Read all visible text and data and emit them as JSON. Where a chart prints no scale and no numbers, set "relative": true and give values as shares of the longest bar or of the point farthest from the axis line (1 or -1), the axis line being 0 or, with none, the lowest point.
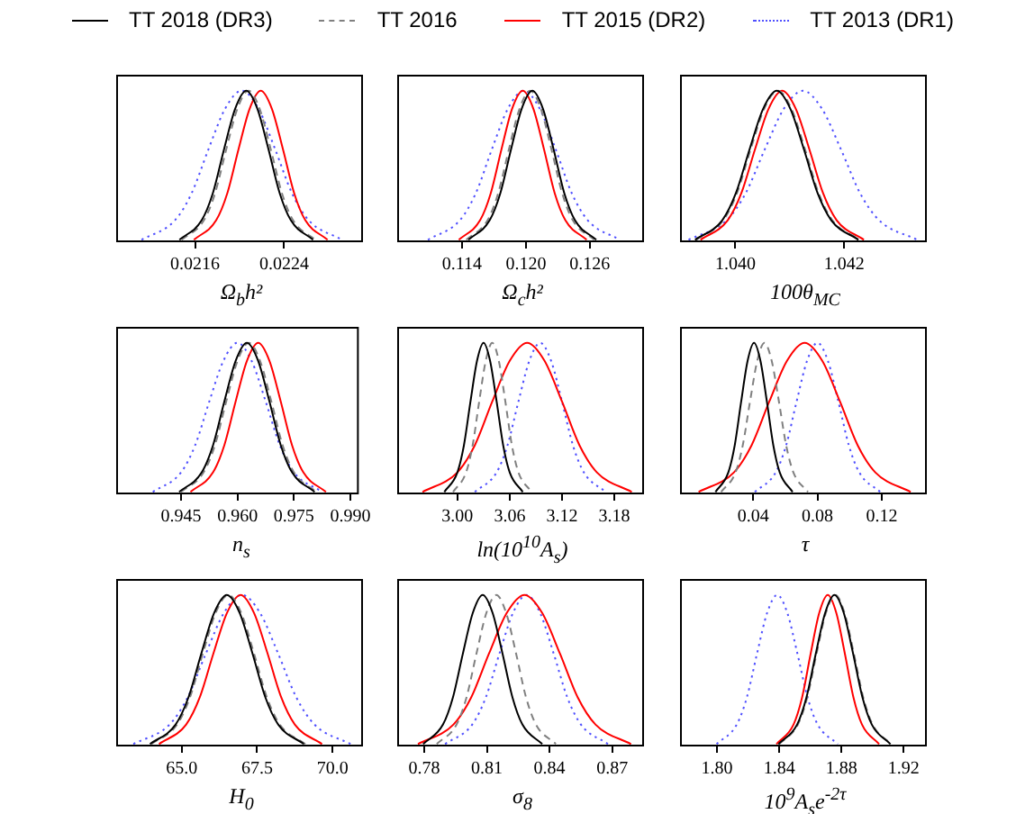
{
  "chart_data": [
    {
      "type": "line",
      "relative": true,
      "legend": "top",
      "xlabel": "Ω$_{b}$h²",
      "xlim": [
        0.0209,
        0.0231
      ],
      "xticks": [
        0.0216,
        0.0224
      ],
      "series": [
        {
          "name": "TT 2018 (DR3)",
          "color": "#000000",
          "line_style": "solid",
          "x": [
            0.02146,
            0.02166,
            0.02176,
            0.02186,
            0.02196,
            0.02206,
            0.02216,
            0.02226,
            0.02236,
            0.02246,
            0.02266
          ],
          "values": [
            0.01,
            0.14,
            0.32,
            0.61,
            0.88,
            1,
            0.88,
            0.61,
            0.32,
            0.14,
            0.01
          ]
        },
        {
          "name": "TT 2016",
          "color": "#808080",
          "line_style": "dashed",
          "x": [
            0.02148,
            0.02168,
            0.02178,
            0.02188,
            0.02198,
            0.02208,
            0.02218,
            0.02228,
            0.02238,
            0.02248,
            0.02268
          ],
          "values": [
            0.01,
            0.14,
            0.32,
            0.61,
            0.88,
            1,
            0.88,
            0.61,
            0.32,
            0.14,
            0.01
          ]
        },
        {
          "name": "TT 2015 (DR2)",
          "color": "#ff0000",
          "line_style": "solid",
          "x": [
            0.02159,
            0.02179,
            0.02189,
            0.02199,
            0.02209,
            0.02219,
            0.02229,
            0.02239,
            0.02249,
            0.02259,
            0.02279
          ],
          "values": [
            0.01,
            0.14,
            0.32,
            0.61,
            0.88,
            1,
            0.88,
            0.61,
            0.32,
            0.14,
            0.01
          ]
        },
        {
          "name": "TT 2013 (DR1)",
          "color": "#5050ff",
          "line_style": "dotted",
          "x": [
            0.02112,
            0.02142,
            0.02157,
            0.02172,
            0.02187,
            0.02202,
            0.02217,
            0.02232,
            0.02247,
            0.02262,
            0.02292
          ],
          "values": [
            0.01,
            0.14,
            0.32,
            0.61,
            0.88,
            1,
            0.88,
            0.61,
            0.32,
            0.14,
            0.01
          ]
        }
      ]
    },
    {
      "type": "line",
      "relative": true,
      "xlabel": "Ω$_{c}$h²",
      "xlim": [
        0.108,
        0.131
      ],
      "xticks": [
        0.114,
        {
          "value": 0.12,
          "label": "0.120"
        },
        0.126
      ],
      "series": [
        {
          "color": "#000000",
          "line_style": "solid",
          "x": [
            0.1146,
            0.1166,
            0.1176,
            0.1186,
            0.1196,
            0.1206,
            0.1216,
            0.1226,
            0.1236,
            0.1246,
            0.1266
          ],
          "values": [
            0.01,
            0.14,
            0.32,
            0.61,
            0.88,
            1,
            0.88,
            0.61,
            0.32,
            0.14,
            0.01
          ]
        },
        {
          "color": "#808080",
          "line_style": "dashed",
          "x": [
            0.1144,
            0.1164,
            0.1174,
            0.1184,
            0.1194,
            0.1204,
            0.1214,
            0.1224,
            0.1234,
            0.1244,
            0.1264
          ],
          "values": [
            0.01,
            0.14,
            0.32,
            0.61,
            0.88,
            1,
            0.88,
            0.61,
            0.32,
            0.14,
            0.01
          ]
        },
        {
          "color": "#ff0000",
          "line_style": "solid",
          "x": [
            0.1137,
            0.1157,
            0.1167,
            0.1177,
            0.1187,
            0.1197,
            0.1207,
            0.1217,
            0.1227,
            0.1237,
            0.1257
          ],
          "values": [
            0.01,
            0.14,
            0.32,
            0.61,
            0.88,
            1,
            0.88,
            0.61,
            0.32,
            0.14,
            0.01
          ]
        },
        {
          "color": "#5050ff",
          "line_style": "dotted",
          "x": [
            0.1108,
            0.1138,
            0.1153,
            0.1168,
            0.1183,
            0.1198,
            0.1213,
            0.1228,
            0.1243,
            0.1258,
            0.1288
          ],
          "values": [
            0.01,
            0.14,
            0.32,
            0.61,
            0.88,
            1,
            0.88,
            0.61,
            0.32,
            0.14,
            0.01
          ]
        }
      ]
    },
    {
      "type": "line",
      "relative": true,
      "xlabel": "100θ$_{MC}$",
      "xlim": [
        1.039,
        1.0435
      ],
      "xticks": [
        {
          "value": 1.04,
          "label": "1.040"
        },
        1.042
      ],
      "series": [
        {
          "color": "#000000",
          "line_style": "solid",
          "x": [
            1.03926,
            1.03976,
            1.04001,
            1.04026,
            1.04051,
            1.04076,
            1.04101,
            1.04126,
            1.04151,
            1.04176,
            1.04226
          ],
          "values": [
            0.01,
            0.14,
            0.32,
            0.61,
            0.88,
            1,
            0.88,
            0.61,
            0.32,
            0.14,
            0.01
          ]
        },
        {
          "color": "#808080",
          "line_style": "dashed",
          "x": [
            1.03928,
            1.03978,
            1.04003,
            1.04028,
            1.04053,
            1.04078,
            1.04103,
            1.04128,
            1.04153,
            1.04178,
            1.04228
          ],
          "values": [
            0.01,
            0.14,
            0.32,
            0.61,
            0.88,
            1,
            0.88,
            0.61,
            0.32,
            0.14,
            0.01
          ]
        },
        {
          "color": "#ff0000",
          "line_style": "solid",
          "x": [
            1.03936,
            1.03986,
            1.04011,
            1.04036,
            1.04061,
            1.04086,
            1.04111,
            1.04136,
            1.04161,
            1.04186,
            1.04236
          ],
          "values": [
            0.01,
            0.14,
            0.32,
            0.61,
            0.88,
            1,
            0.88,
            0.61,
            0.32,
            0.14,
            0.01
          ]
        },
        {
          "color": "#5050ff",
          "line_style": "dotted",
          "x": [
            1.03914,
            1.03984,
            1.04019,
            1.04054,
            1.04089,
            1.04124,
            1.04159,
            1.04194,
            1.04229,
            1.04264,
            1.04334
          ],
          "values": [
            0.01,
            0.14,
            0.32,
            0.61,
            0.88,
            1,
            0.88,
            0.61,
            0.32,
            0.14,
            0.01
          ]
        }
      ]
    },
    {
      "type": "line",
      "relative": true,
      "xlabel": "n$_{s}$",
      "xlim": [
        0.928,
        0.992
      ],
      "xticks": [
        0.945,
        {
          "value": 0.96,
          "label": "0.960"
        },
        0.975,
        {
          "value": 0.99,
          "label": "0.990"
        }
      ],
      "series": [
        {
          "color": "#000000",
          "line_style": "solid",
          "x": [
            0.9445,
            0.9505,
            0.9535,
            0.9565,
            0.9595,
            0.9625,
            0.9655,
            0.9685,
            0.9715,
            0.9745,
            0.9805
          ],
          "values": [
            0.01,
            0.14,
            0.32,
            0.61,
            0.88,
            1,
            0.88,
            0.61,
            0.32,
            0.14,
            0.01
          ]
        },
        {
          "color": "#808080",
          "line_style": "dashed",
          "x": [
            0.945,
            0.951,
            0.954,
            0.957,
            0.96,
            0.963,
            0.966,
            0.969,
            0.972,
            0.975,
            0.981
          ],
          "values": [
            0.01,
            0.14,
            0.32,
            0.61,
            0.88,
            1,
            0.88,
            0.61,
            0.32,
            0.14,
            0.01
          ]
        },
        {
          "color": "#ff0000",
          "line_style": "solid",
          "x": [
            0.9475,
            0.9535,
            0.9565,
            0.9595,
            0.9625,
            0.9655,
            0.9685,
            0.9715,
            0.9745,
            0.9775,
            0.9835
          ],
          "values": [
            0.01,
            0.14,
            0.32,
            0.61,
            0.88,
            1,
            0.88,
            0.61,
            0.32,
            0.14,
            0.01
          ]
        },
        {
          "color": "#5050ff",
          "line_style": "dotted",
          "x": [
            0.9375,
            0.945,
            0.94875,
            0.9525,
            0.95625,
            0.96,
            0.96375,
            0.9675,
            0.97125,
            0.975,
            0.9825
          ],
          "values": [
            0.01,
            0.14,
            0.32,
            0.61,
            0.88,
            1,
            0.88,
            0.61,
            0.32,
            0.14,
            0.01
          ]
        }
      ]
    },
    {
      "type": "line",
      "relative": true,
      "xlabel": "ln(10$^{10}$A$_{s}$)",
      "xlim": [
        2.932,
        3.213
      ],
      "xticks": [
        {
          "value": 3,
          "label": "3.00"
        },
        3.06,
        3.12,
        3.18
      ],
      "series": [
        {
          "color": "#000000",
          "line_style": "solid",
          "x": [
            2.985,
            3.0,
            3.0075,
            3.015,
            3.0225,
            3.03,
            3.0375,
            3.045,
            3.0525,
            3.06,
            3.075
          ],
          "values": [
            0.01,
            0.14,
            0.32,
            0.61,
            0.88,
            1,
            0.88,
            0.61,
            0.32,
            0.14,
            0.01
          ]
        },
        {
          "color": "#808080",
          "line_style": "dashed",
          "x": [
            2.995,
            3.01,
            3.0175,
            3.025,
            3.0325,
            3.04,
            3.0475,
            3.055,
            3.0625,
            3.07,
            3.085
          ],
          "values": [
            0.01,
            0.14,
            0.32,
            0.61,
            0.88,
            1,
            0.88,
            0.61,
            0.32,
            0.14,
            0.01
          ]
        },
        {
          "color": "#ff0000",
          "line_style": "solid",
          "x": [
            2.96,
            3.0,
            3.02,
            3.04,
            3.06,
            3.08,
            3.1,
            3.12,
            3.14,
            3.16,
            3.2
          ],
          "values": [
            0.01,
            0.14,
            0.32,
            0.61,
            0.88,
            1,
            0.88,
            0.61,
            0.32,
            0.14,
            0.01
          ]
        },
        {
          "color": "#5050ff",
          "line_style": "dotted",
          "x": [
            3.02,
            3.045,
            3.0575,
            3.07,
            3.0825,
            3.095,
            3.1075,
            3.12,
            3.1325,
            3.145,
            3.17
          ],
          "values": [
            0.01,
            0.14,
            0.32,
            0.61,
            0.88,
            1,
            0.88,
            0.61,
            0.32,
            0.14,
            0.01
          ]
        }
      ]
    },
    {
      "type": "line",
      "relative": true,
      "xlabel": "τ",
      "xlim": [
        -0.005,
        0.1475
      ],
      "xticks": [
        0.04,
        0.08,
        0.12
      ],
      "series": [
        {
          "color": "#000000",
          "line_style": "solid",
          "x": [
            0.0165,
            0.0245,
            0.0285,
            0.0325,
            0.0365,
            0.0405,
            0.0445,
            0.0485,
            0.0525,
            0.0565,
            0.0645
          ],
          "values": [
            0.01,
            0.14,
            0.32,
            0.61,
            0.88,
            1,
            0.88,
            0.61,
            0.32,
            0.14,
            0.01
          ]
        },
        {
          "color": "#808080",
          "line_style": "dashed",
          "x": [
            0.02,
            0.029,
            0.0335,
            0.038,
            0.0425,
            0.047,
            0.0515,
            0.056,
            0.0605,
            0.065,
            0.074
          ],
          "values": [
            0.01,
            0.14,
            0.32,
            0.61,
            0.88,
            1,
            0.88,
            0.61,
            0.32,
            0.14,
            0.01
          ]
        },
        {
          "color": "#ff0000",
          "line_style": "solid",
          "x": [
            0.006,
            0.028,
            0.039,
            0.05,
            0.061,
            0.072,
            0.083,
            0.094,
            0.105,
            0.116,
            0.138
          ],
          "values": [
            0.01,
            0.14,
            0.32,
            0.61,
            0.88,
            1,
            0.88,
            0.61,
            0.32,
            0.14,
            0.01
          ]
        },
        {
          "color": "#5050ff",
          "line_style": "dotted",
          "x": [
            0.041,
            0.054,
            0.0605,
            0.067,
            0.0735,
            0.08,
            0.0865,
            0.093,
            0.0995,
            0.106,
            0.119
          ],
          "values": [
            0.01,
            0.14,
            0.32,
            0.61,
            0.88,
            1,
            0.88,
            0.61,
            0.32,
            0.14,
            0.01
          ]
        }
      ]
    },
    {
      "type": "line",
      "relative": true,
      "xlabel": "H$_{0}$",
      "xlim": [
        62.86,
        70.98
      ],
      "xticks": [
        {
          "value": 65,
          "label": "65.0"
        },
        67.5,
        {
          "value": 70,
          "label": "70.0"
        }
      ],
      "series": [
        {
          "color": "#000000",
          "line_style": "solid",
          "x": [
            63.95,
            64.8,
            65.225,
            65.65,
            66.075,
            66.5,
            66.925,
            67.35,
            67.775,
            68.2,
            69.05
          ],
          "values": [
            0.01,
            0.14,
            0.32,
            0.61,
            0.88,
            1,
            0.88,
            0.61,
            0.32,
            0.14,
            0.01
          ]
        },
        {
          "color": "#808080",
          "line_style": "dashed",
          "x": [
            64.0,
            64.85,
            65.275,
            65.7,
            66.125,
            66.55,
            66.975,
            67.4,
            67.825,
            68.25,
            69.1
          ],
          "values": [
            0.01,
            0.14,
            0.32,
            0.61,
            0.88,
            1,
            0.88,
            0.61,
            0.32,
            0.14,
            0.01
          ]
        },
        {
          "color": "#ff0000",
          "line_style": "solid",
          "x": [
            64.25,
            65.15,
            65.6,
            66.05,
            66.5,
            66.95,
            67.4,
            67.85,
            68.3,
            68.75,
            69.65
          ],
          "values": [
            0.01,
            0.14,
            0.32,
            0.61,
            0.88,
            1,
            0.88,
            0.61,
            0.32,
            0.14,
            0.01
          ]
        },
        {
          "color": "#5050ff",
          "line_style": "dotted",
          "x": [
            63.4,
            64.6,
            65.2,
            65.8,
            66.4,
            67.0,
            67.6,
            68.2,
            68.8,
            69.4,
            70.6
          ],
          "values": [
            0.01,
            0.14,
            0.32,
            0.61,
            0.88,
            1,
            0.88,
            0.61,
            0.32,
            0.14,
            0.01
          ]
        }
      ]
    },
    {
      "type": "line",
      "relative": true,
      "xlabel": "σ$_{8}$",
      "xlim": [
        0.7675,
        0.8848
      ],
      "xticks": [
        0.78,
        0.81,
        0.84,
        0.87
      ],
      "series": [
        {
          "color": "#000000",
          "line_style": "solid",
          "x": [
            0.7795,
            0.789,
            0.79375,
            0.7985,
            0.80325,
            0.808,
            0.81275,
            0.8175,
            0.82225,
            0.827,
            0.8365
          ],
          "values": [
            0.01,
            0.14,
            0.32,
            0.61,
            0.88,
            1,
            0.88,
            0.61,
            0.32,
            0.14,
            0.01
          ]
        },
        {
          "color": "#808080",
          "line_style": "dashed",
          "x": [
            0.786,
            0.7955,
            0.80025,
            0.805,
            0.80975,
            0.8145,
            0.81925,
            0.824,
            0.82875,
            0.8335,
            0.843
          ],
          "values": [
            0.01,
            0.14,
            0.32,
            0.61,
            0.88,
            1,
            0.88,
            0.61,
            0.32,
            0.14,
            0.01
          ]
        },
        {
          "color": "#ff0000",
          "line_style": "solid",
          "x": [
            0.777,
            0.794,
            0.8025,
            0.811,
            0.8195,
            0.828,
            0.8365,
            0.845,
            0.8535,
            0.862,
            0.879
          ],
          "values": [
            0.01,
            0.14,
            0.32,
            0.61,
            0.88,
            1,
            0.88,
            0.61,
            0.32,
            0.14,
            0.01
          ]
        },
        {
          "color": "#5050ff",
          "line_style": "dotted",
          "x": [
            0.79,
            0.803,
            0.8095,
            0.816,
            0.8225,
            0.829,
            0.8355,
            0.842,
            0.8485,
            0.855,
            0.868
          ],
          "values": [
            0.01,
            0.14,
            0.32,
            0.61,
            0.88,
            1,
            0.88,
            0.61,
            0.32,
            0.14,
            0.01
          ]
        }
      ]
    },
    {
      "type": "line",
      "relative": true,
      "xlabel": "10$^{9}$A$_{s}$e$^{-2τ}$",
      "xlim": [
        1.7768,
        1.9343
      ],
      "xticks": [
        {
          "value": 1.8,
          "label": "1.80"
        },
        1.84,
        1.88,
        1.92
      ],
      "series": [
        {
          "color": "#000000",
          "line_style": "solid",
          "x": [
            1.8395,
            1.8515,
            1.8575,
            1.8635,
            1.8695,
            1.8755,
            1.8815,
            1.8875,
            1.8935,
            1.8995,
            1.9115
          ],
          "values": [
            0.01,
            0.14,
            0.32,
            0.61,
            0.88,
            1,
            0.88,
            0.61,
            0.32,
            0.14,
            0.01
          ]
        },
        {
          "color": "#808080",
          "line_style": "dashed",
          "x": [
            1.84,
            1.852,
            1.858,
            1.864,
            1.87,
            1.876,
            1.882,
            1.888,
            1.894,
            1.9,
            1.912
          ],
          "values": [
            0.01,
            0.14,
            0.32,
            0.61,
            0.88,
            1,
            0.88,
            0.61,
            0.32,
            0.14,
            0.01
          ]
        },
        {
          "color": "#ff0000",
          "line_style": "solid",
          "x": [
            1.8382,
            1.8492,
            1.8547,
            1.8602,
            1.8657,
            1.8712,
            1.8767,
            1.8822,
            1.8877,
            1.8932,
            1.9042
          ],
          "values": [
            0.01,
            0.14,
            0.32,
            0.61,
            0.88,
            1,
            0.88,
            0.61,
            0.32,
            0.14,
            0.01
          ]
        },
        {
          "color": "#5050ff",
          "line_style": "dotted",
          "x": [
            1.7997,
            1.8127,
            1.8192,
            1.8257,
            1.8322,
            1.8387,
            1.8452,
            1.8517,
            1.8582,
            1.8647,
            1.8777
          ],
          "values": [
            0.01,
            0.14,
            0.32,
            0.61,
            0.88,
            1,
            0.88,
            0.61,
            0.32,
            0.14,
            0.01
          ]
        }
      ]
    }
  ]
}
